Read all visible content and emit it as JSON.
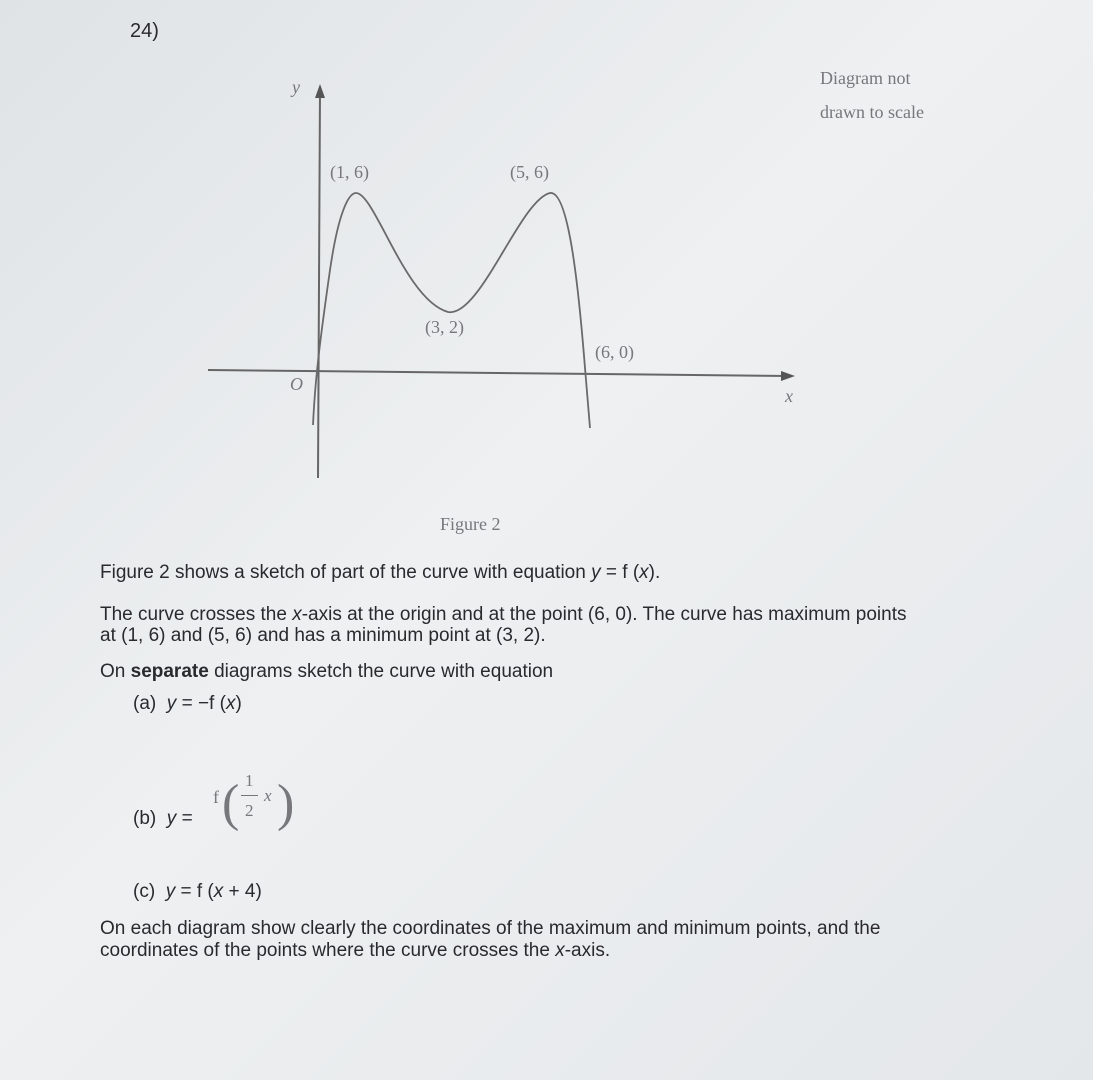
{
  "question_number": "24)",
  "figure": {
    "note": [
      "Diagram not",
      "drawn to scale"
    ],
    "y_axis": "y",
    "x_axis": "x",
    "origin": "O",
    "points": [
      "(1, 6)",
      "(5, 6)",
      "(3, 2)",
      "(6, 0)"
    ],
    "caption": "Figure 2"
  },
  "intro": {
    "line1": [
      "Figure 2 shows a sketch of part of the curve with equation ",
      "y",
      " = f (",
      "x",
      ")."
    ],
    "line2": [
      "The curve crosses the ",
      "x",
      "-axis at the origin and at the point (6, 0). The curve has maximum points"
    ],
    "line3": "at (1, 6) and (5, 6) and has a minimum point at (3, 2).",
    "line4": [
      "On ",
      "separate",
      " diagrams sketch the curve with equation"
    ]
  },
  "parts": [
    {
      "label": "(a)",
      "equation": [
        "y",
        " = −f (",
        "x",
        ")"
      ]
    },
    {
      "label": "(b)",
      "equation": [
        "y",
        " ="
      ],
      "function": "f",
      "numerator": "1",
      "denominator": "2",
      "variable": "x"
    },
    {
      "label": "(c)",
      "equation": [
        "y",
        " = f (",
        "x",
        " + 4)"
      ]
    }
  ],
  "closing": {
    "line1": "On each diagram show clearly the coordinates of the maximum and minimum points, and the",
    "line2": [
      "coordinates of the points where the curve crosses the ",
      "x",
      "-axis."
    ]
  }
}
